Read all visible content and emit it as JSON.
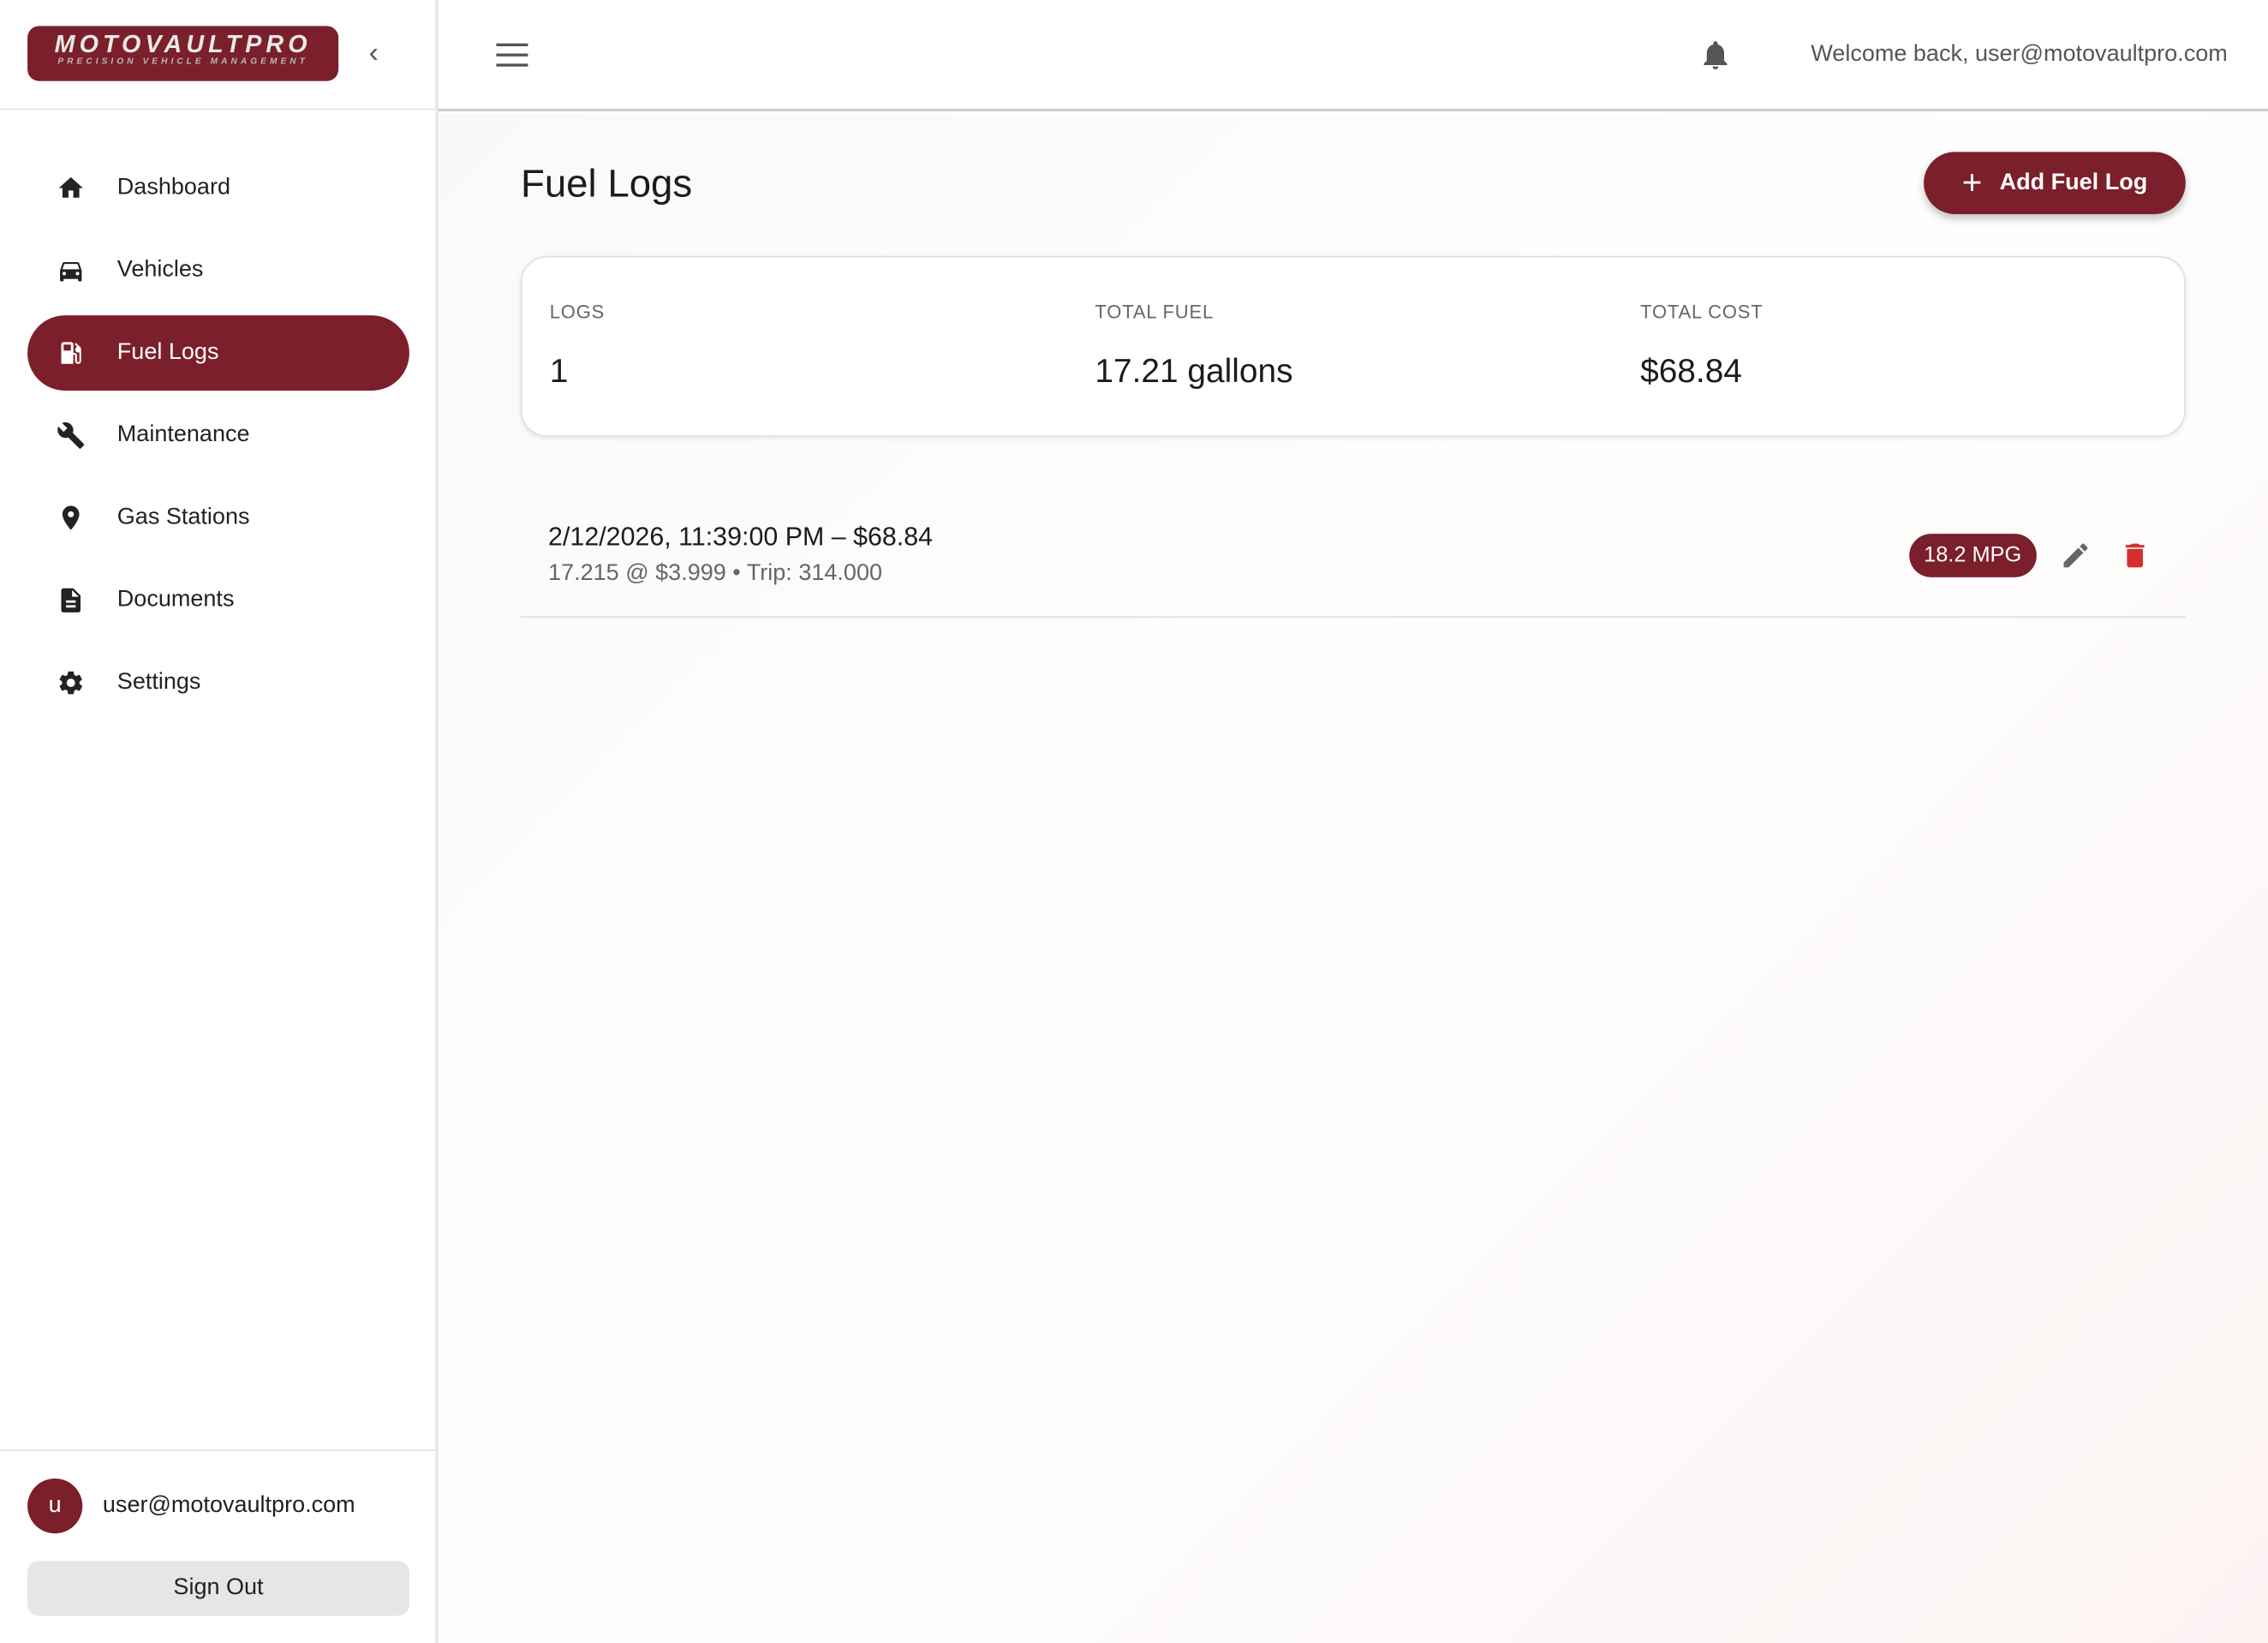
{
  "brand": {
    "name": "MOTOVAULTPRO",
    "tagline": "PRECISION VEHICLE MANAGEMENT",
    "color": "#7b1f2b"
  },
  "sidebar": {
    "items": [
      {
        "label": "Dashboard",
        "icon": "home-icon"
      },
      {
        "label": "Vehicles",
        "icon": "car-icon"
      },
      {
        "label": "Fuel Logs",
        "icon": "fuel-pump-icon",
        "active": true
      },
      {
        "label": "Maintenance",
        "icon": "wrench-icon"
      },
      {
        "label": "Gas Stations",
        "icon": "map-pin-icon"
      },
      {
        "label": "Documents",
        "icon": "document-icon"
      },
      {
        "label": "Settings",
        "icon": "gear-icon"
      }
    ],
    "user": {
      "initial": "u",
      "email": "user@motovaultpro.com",
      "sign_out": "Sign Out"
    }
  },
  "header": {
    "welcome": "Welcome back, user@motovaultpro.com"
  },
  "main": {
    "title": "Fuel Logs",
    "add_label": "Add Fuel Log",
    "stats": [
      {
        "label": "LOGS",
        "value": "1"
      },
      {
        "label": "TOTAL FUEL",
        "value": "17.21 gallons"
      },
      {
        "label": "TOTAL COST",
        "value": "$68.84"
      }
    ],
    "logs": [
      {
        "primary": "2/12/2026, 11:39:00 PM – $68.84",
        "secondary": "17.215 @ $3.999 • Trip: 314.000",
        "mpg": "18.2 MPG"
      }
    ]
  }
}
